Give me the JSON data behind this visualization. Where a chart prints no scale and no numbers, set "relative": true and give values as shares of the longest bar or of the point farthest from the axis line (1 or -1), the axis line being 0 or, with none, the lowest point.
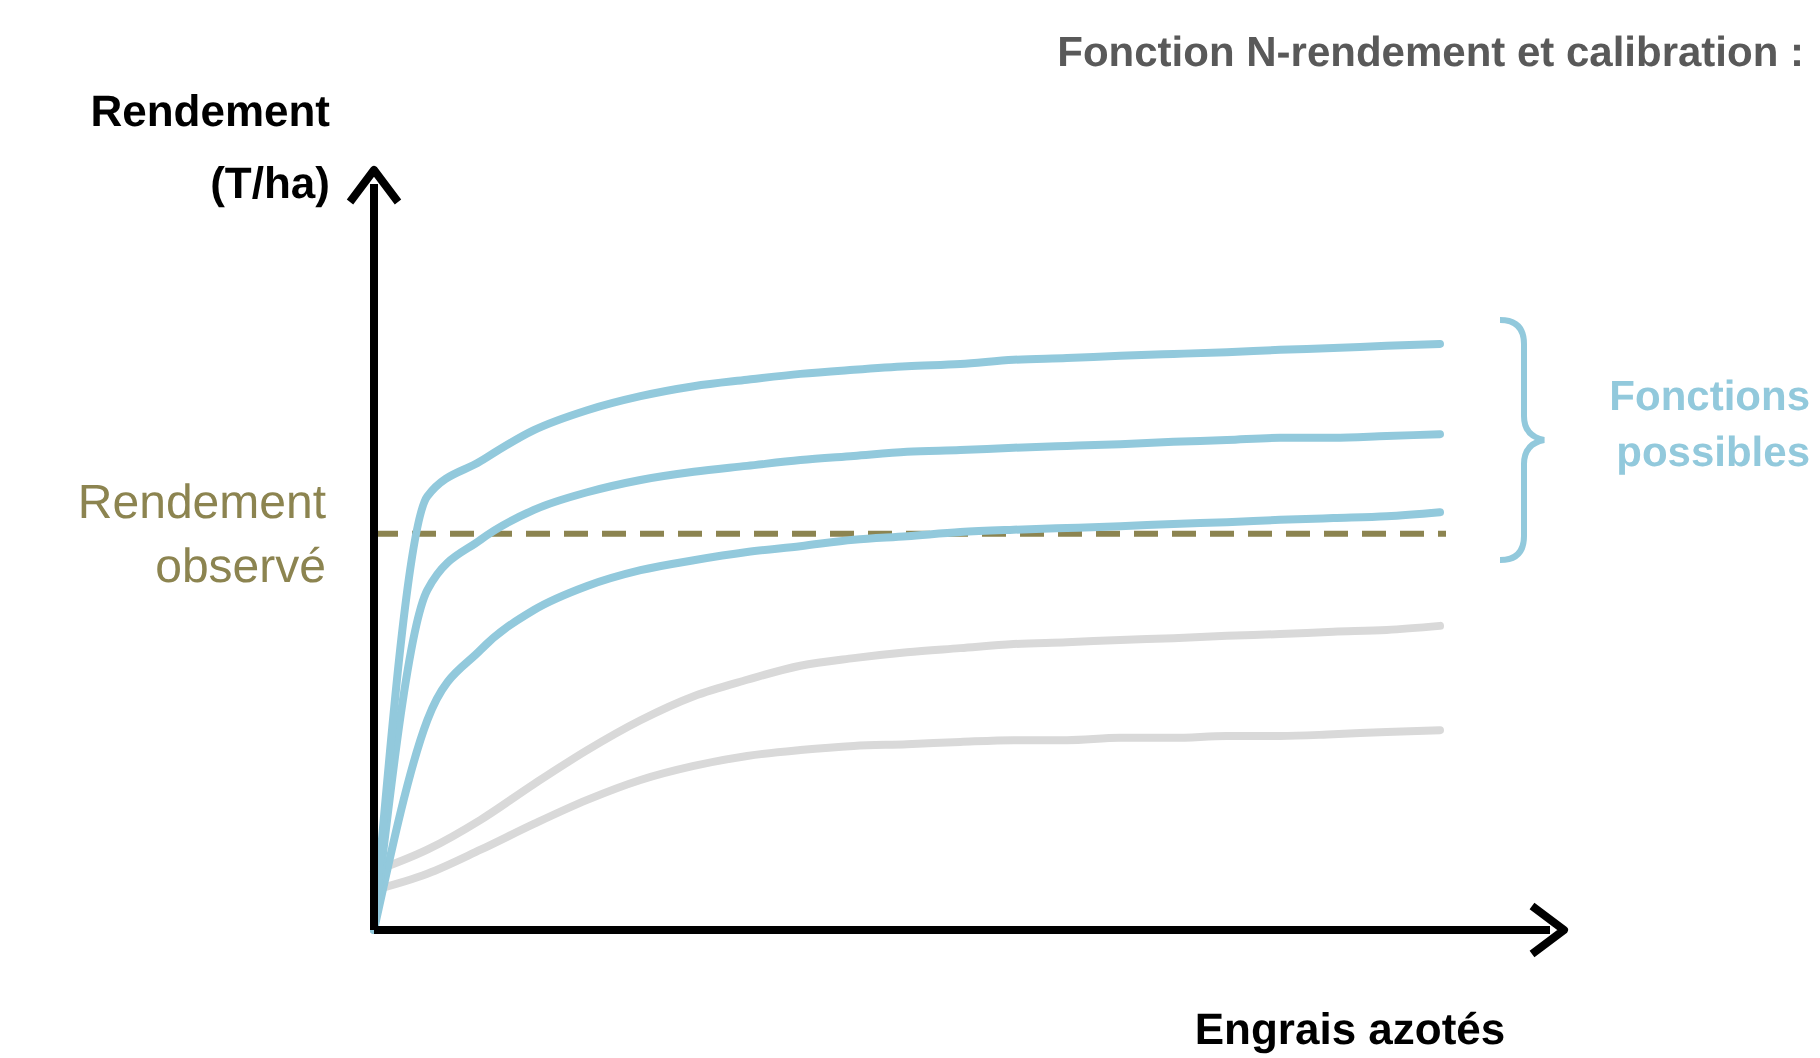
{
  "chart_data": {
    "type": "line",
    "relative": true,
    "title": "Fonction N-rendement et calibration :",
    "xlabel": "Engrais azotés",
    "ylabel": "Rendement (T/ha)",
    "categories": [
      null,
      null,
      null,
      null,
      null,
      null,
      null,
      null,
      null,
      null,
      null,
      null,
      null,
      null,
      null,
      null,
      null,
      null,
      null,
      null,
      null
    ],
    "series": [
      {
        "color": "#92c9dc",
        "values": [
          0,
          0.74,
          0.8,
          0.853,
          0.887,
          0.911,
          0.928,
          0.939,
          0.949,
          0.956,
          0.962,
          0.966,
          0.973,
          0.976,
          0.98,
          0.983,
          0.986,
          0.99,
          0.993,
          0.997,
          1
        ]
      },
      {
        "color": "#92c9dc",
        "values": [
          0,
          0.58,
          0.666,
          0.717,
          0.747,
          0.768,
          0.782,
          0.792,
          0.802,
          0.809,
          0.816,
          0.819,
          0.823,
          0.826,
          0.829,
          0.833,
          0.836,
          0.84,
          0.84,
          0.843,
          0.846
        ]
      },
      {
        "color": "#92c9dc",
        "values": [
          0,
          0.358,
          0.478,
          0.546,
          0.587,
          0.614,
          0.631,
          0.645,
          0.655,
          0.666,
          0.672,
          0.679,
          0.683,
          0.686,
          0.689,
          0.693,
          0.696,
          0.7,
          0.703,
          0.706,
          0.713
        ]
      },
      {
        "color": "#d9d9d9",
        "values": [
          0.1,
          0.137,
          0.188,
          0.249,
          0.307,
          0.358,
          0.399,
          0.427,
          0.451,
          0.464,
          0.474,
          0.481,
          0.488,
          0.491,
          0.495,
          0.498,
          0.502,
          0.505,
          0.509,
          0.512,
          0.519
        ]
      },
      {
        "color": "#d9d9d9",
        "values": [
          0.068,
          0.096,
          0.137,
          0.181,
          0.222,
          0.256,
          0.28,
          0.297,
          0.307,
          0.314,
          0.317,
          0.321,
          0.324,
          0.324,
          0.328,
          0.328,
          0.331,
          0.331,
          0.334,
          0.338,
          0.341
        ]
      }
    ],
    "ref_lines": [
      {
        "axis": "y",
        "value": 0.676,
        "label": "Rendement observé",
        "color": "#8c8450",
        "line_style": "dashed"
      }
    ],
    "annotations": [
      "Fonctions possibles"
    ]
  }
}
